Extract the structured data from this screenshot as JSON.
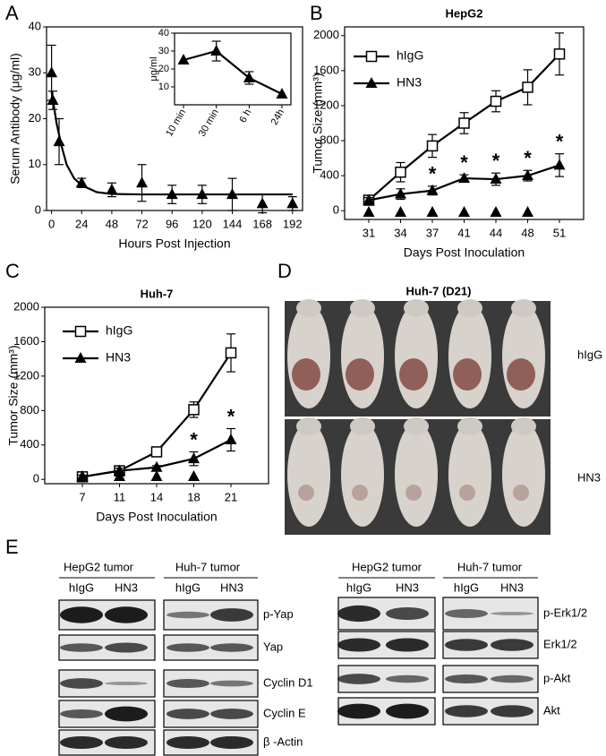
{
  "panels": [
    "A",
    "B",
    "C",
    "D",
    "E"
  ],
  "chart_data": [
    {
      "type": "line",
      "xlabel": "Hours Post Injection",
      "ylabel": "Serum Antibody (μg/ml)",
      "xlim": [
        -4,
        200
      ],
      "xticks": [
        0,
        24,
        48,
        72,
        96,
        120,
        144,
        168,
        192
      ],
      "ylim": [
        0,
        40
      ],
      "yticks": [
        0,
        10,
        20,
        30,
        40
      ],
      "series": [
        {
          "marker": "triangle",
          "line": false,
          "color": "#000000",
          "x": [
            0,
            1,
            6,
            24,
            48,
            72,
            96,
            120,
            144,
            168,
            192
          ],
          "values": [
            30,
            24,
            15,
            6,
            4.5,
            6,
            3.5,
            3.5,
            3.5,
            1.5,
            1.5
          ],
          "errors": [
            6,
            2,
            5,
            1,
            1.5,
            4,
            2,
            2,
            3.5,
            2,
            1.5
          ]
        },
        {
          "marker": "none",
          "line": true,
          "color": "#000000",
          "x": [
            0,
            4,
            8,
            12,
            18,
            24,
            36,
            48,
            72,
            96,
            120,
            144,
            168,
            192
          ],
          "values": [
            26,
            19,
            14,
            10,
            7,
            5.5,
            4,
            3.6,
            3.5,
            3.5,
            3.5,
            3.5,
            3.5,
            3.5
          ]
        }
      ]
    },
    {
      "type": "line",
      "ylabel": "μg/ml",
      "categories": [
        "10 min",
        "30 min",
        "6 h",
        "24h"
      ],
      "ylim": [
        0,
        40
      ],
      "yticks": [
        10,
        20,
        30,
        40
      ],
      "series": [
        {
          "marker": "triangle",
          "line": true,
          "color": "#000000",
          "values": [
            25,
            30,
            15,
            6
          ],
          "errors": [
            null,
            5.5,
            3.5,
            null
          ]
        }
      ]
    },
    {
      "type": "line",
      "title": "HepG2",
      "xlabel": "Days  Post Inoculation",
      "ylabel": "Tumor Size (mm³)",
      "categories": [
        "31",
        "34",
        "37",
        "41",
        "44",
        "48",
        "51"
      ],
      "ylim": [
        -100,
        2100
      ],
      "yticks": [
        0,
        400,
        800,
        1200,
        1600,
        2000
      ],
      "legend": true,
      "series": [
        {
          "name": "hIgG",
          "marker": "square",
          "line": true,
          "color": "#000000",
          "values": [
            120,
            440,
            740,
            1000,
            1250,
            1410,
            1790
          ],
          "errors": [
            40,
            110,
            130,
            120,
            120,
            200,
            240
          ]
        },
        {
          "name": "HN3",
          "marker": "triangle",
          "line": true,
          "color": "#000000",
          "values": [
            120,
            190,
            230,
            370,
            360,
            400,
            520
          ],
          "errors": [
            30,
            60,
            50,
            40,
            70,
            60,
            130
          ]
        }
      ],
      "significance": [
        null,
        null,
        "*",
        "*",
        "*",
        "*",
        "*"
      ],
      "dosing": [
        true,
        true,
        true,
        true,
        true,
        true,
        false
      ]
    },
    {
      "type": "line",
      "title": "Huh-7",
      "xlabel": "Days  Post Inoculation",
      "ylabel": "Tumor Size (mm³)",
      "categories": [
        "7",
        "11",
        "14",
        "18",
        "21"
      ],
      "ylim": [
        -50,
        2000
      ],
      "yticks": [
        0,
        400,
        800,
        1200,
        1600,
        2000
      ],
      "legend": true,
      "series": [
        {
          "name": "hIgG",
          "marker": "square",
          "line": true,
          "color": "#000000",
          "values": [
            30,
            100,
            320,
            810,
            1470
          ],
          "errors": [
            20,
            30,
            20,
            90,
            220
          ]
        },
        {
          "name": "HN3",
          "marker": "triangle",
          "line": true,
          "color": "#000000",
          "values": [
            30,
            100,
            140,
            240,
            460
          ],
          "errors": [
            20,
            30,
            20,
            80,
            130
          ]
        }
      ],
      "significance": [
        null,
        null,
        null,
        "*",
        "*"
      ],
      "dosing": [
        true,
        true,
        true,
        true,
        false
      ]
    }
  ],
  "photo": {
    "title": "Huh-7 (D21)",
    "rows": [
      "hIgG",
      "HN3"
    ]
  },
  "blot": {
    "left": {
      "groups": [
        "HepG2 tumor",
        "Huh-7 tumor"
      ],
      "lanes": [
        "hIgG",
        "HN3",
        "hIgG",
        "HN3"
      ],
      "rows": [
        "p-Yap",
        "Yap",
        "Cyclin D1",
        "Cyclin E",
        "β -Actin"
      ]
    },
    "right": {
      "groups": [
        "HepG2 tumor",
        "Huh-7 tumor"
      ],
      "lanes": [
        "hIgG",
        "HN3",
        "hIgG",
        "HN3"
      ],
      "rows": [
        "p-Erk1/2",
        "Erk1/2",
        "p-Akt",
        "Akt"
      ]
    }
  }
}
